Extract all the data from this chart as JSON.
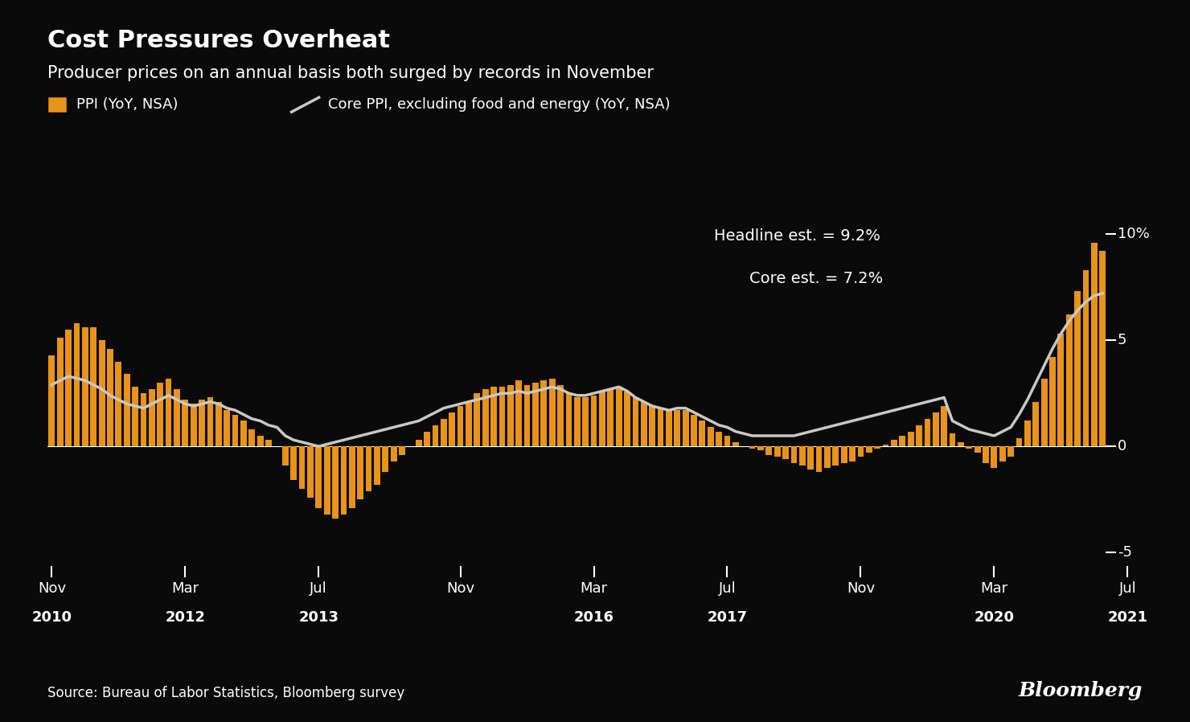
{
  "title": "Cost Pressures Overheat",
  "subtitle": "Producer prices on an annual basis both surged by records in November",
  "legend_ppi": "PPI (YoY, NSA)",
  "legend_core": "Core PPI, excluding food and energy (YoY, NSA)",
  "headline_annotation": "Headline est. = 9.2%",
  "core_annotation": "Core est. = 7.2%",
  "source": "Source: Bureau of Labor Statistics, Bloomberg survey",
  "background_color": "#0a0a0a",
  "text_color": "#ffffff",
  "bar_color": "#e8931a",
  "line_color": "#c8c8c8",
  "title_fontsize": 22,
  "subtitle_fontsize": 15,
  "annotation_fontsize": 14,
  "axis_label_fontsize": 13,
  "source_fontsize": 12,
  "ylim": [
    -5.5,
    11.5
  ],
  "yticks": [
    -5,
    0,
    5,
    10
  ],
  "ytick_labels": [
    "-5",
    "0",
    "5",
    "10%"
  ],
  "ppi_values": [
    4.3,
    5.1,
    5.5,
    5.8,
    5.6,
    5.6,
    5.0,
    4.6,
    4.0,
    3.4,
    2.8,
    2.5,
    2.7,
    3.0,
    3.2,
    2.7,
    2.2,
    2.0,
    2.2,
    2.3,
    2.1,
    1.7,
    1.5,
    1.2,
    0.8,
    0.5,
    0.3,
    0.0,
    -0.9,
    -1.6,
    -2.0,
    -2.4,
    -2.9,
    -3.2,
    -3.4,
    -3.2,
    -2.9,
    -2.5,
    -2.1,
    -1.8,
    -1.2,
    -0.7,
    -0.4,
    0.0,
    0.3,
    0.7,
    1.0,
    1.3,
    1.6,
    1.9,
    2.1,
    2.5,
    2.7,
    2.8,
    2.8,
    2.9,
    3.1,
    2.9,
    3.0,
    3.1,
    3.2,
    2.9,
    2.5,
    2.3,
    2.3,
    2.4,
    2.6,
    2.7,
    2.8,
    2.6,
    2.3,
    2.1,
    1.9,
    1.8,
    1.7,
    1.7,
    1.7,
    1.5,
    1.2,
    0.9,
    0.7,
    0.5,
    0.2,
    0.0,
    -0.1,
    -0.2,
    -0.4,
    -0.5,
    -0.6,
    -0.8,
    -0.9,
    -1.1,
    -1.2,
    -1.0,
    -0.9,
    -0.8,
    -0.7,
    -0.5,
    -0.3,
    -0.1,
    0.1,
    0.3,
    0.5,
    0.7,
    1.0,
    1.3,
    1.6,
    1.9,
    0.6,
    0.2,
    -0.1,
    -0.3,
    -0.8,
    -1.0,
    -0.7,
    -0.5,
    0.4,
    1.2,
    2.1,
    3.2,
    4.2,
    5.3,
    6.2,
    7.3,
    8.3,
    9.6,
    9.2
  ],
  "core_ppi_values": [
    2.9,
    3.1,
    3.3,
    3.2,
    3.1,
    2.9,
    2.7,
    2.4,
    2.2,
    2.0,
    1.9,
    1.8,
    2.0,
    2.2,
    2.4,
    2.2,
    2.0,
    1.9,
    2.0,
    2.1,
    2.0,
    1.8,
    1.7,
    1.5,
    1.3,
    1.2,
    1.0,
    0.9,
    0.5,
    0.3,
    0.2,
    0.1,
    0.0,
    0.1,
    0.2,
    0.3,
    0.4,
    0.5,
    0.6,
    0.7,
    0.8,
    0.9,
    1.0,
    1.1,
    1.2,
    1.4,
    1.6,
    1.8,
    1.9,
    2.0,
    2.1,
    2.2,
    2.3,
    2.4,
    2.5,
    2.5,
    2.6,
    2.5,
    2.6,
    2.7,
    2.8,
    2.7,
    2.5,
    2.4,
    2.4,
    2.5,
    2.6,
    2.7,
    2.8,
    2.6,
    2.3,
    2.1,
    1.9,
    1.8,
    1.7,
    1.8,
    1.8,
    1.6,
    1.4,
    1.2,
    1.0,
    0.9,
    0.7,
    0.6,
    0.5,
    0.5,
    0.5,
    0.5,
    0.5,
    0.5,
    0.6,
    0.7,
    0.8,
    0.9,
    1.0,
    1.1,
    1.2,
    1.3,
    1.4,
    1.5,
    1.6,
    1.7,
    1.8,
    1.9,
    2.0,
    2.1,
    2.2,
    2.3,
    1.2,
    1.0,
    0.8,
    0.7,
    0.6,
    0.5,
    0.7,
    0.9,
    1.5,
    2.2,
    3.0,
    3.8,
    4.6,
    5.3,
    5.9,
    6.4,
    6.8,
    7.1,
    7.2
  ],
  "xlabel_data_positions": [
    0,
    16,
    32,
    49,
    65,
    81,
    97,
    113,
    129
  ],
  "xlabel_months": [
    "Nov",
    "Mar",
    "Jul",
    "Nov",
    "Mar",
    "Jul",
    "Nov",
    "Mar",
    "Jul"
  ],
  "xlabel_years": [
    "2010",
    "2012",
    "2013",
    "",
    "2016",
    "2017",
    "",
    "2020",
    "2021"
  ]
}
